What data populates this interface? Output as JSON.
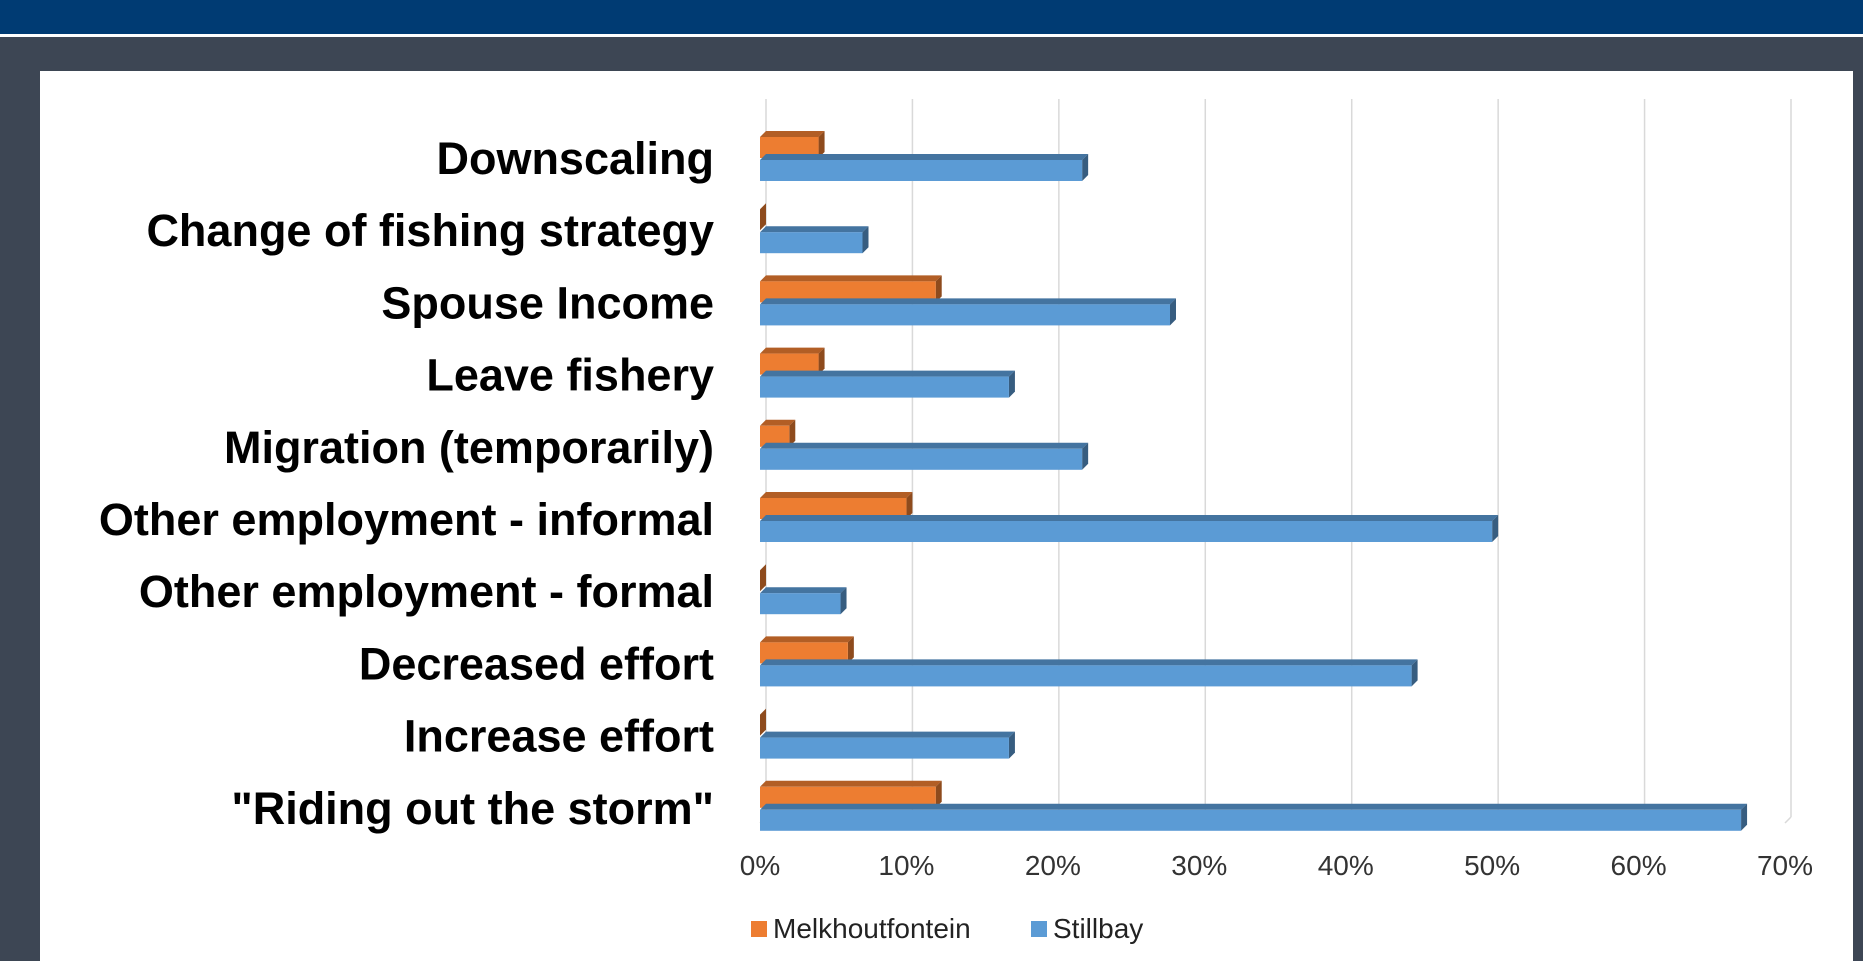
{
  "colors": {
    "header_band": "#003b73",
    "frame": "#3d4654",
    "panel": "#ffffff",
    "gridline": "#d9d9d9"
  },
  "chart_data": {
    "type": "bar",
    "orientation": "horizontal",
    "style": "3d-clustered-bar",
    "categories": [
      "Downscaling",
      "Change of fishing strategy",
      "Spouse Income",
      "Leave fishery",
      "Migration (temporarily)",
      "Other employment - informal",
      "Other employment - formal",
      "Decreased effort",
      "Increase effort",
      "\"Riding out the storm\""
    ],
    "series": [
      {
        "name": "Melkhoutfontein",
        "color": "#ed7d31",
        "values": [
          0.04,
          0.0,
          0.12,
          0.04,
          0.02,
          0.1,
          0.0,
          0.06,
          0.0,
          0.12
        ]
      },
      {
        "name": "Stillbay",
        "color": "#5b9bd5",
        "values": [
          0.22,
          0.07,
          0.28,
          0.17,
          0.22,
          0.5,
          0.055,
          0.445,
          0.17,
          0.67
        ]
      }
    ],
    "xlim": [
      0,
      0.7
    ],
    "x_ticks": [
      "0%",
      "10%",
      "20%",
      "30%",
      "40%",
      "50%",
      "60%",
      "70%"
    ],
    "grid": true,
    "legend_position": "bottom",
    "title": "",
    "xlabel": "",
    "ylabel": ""
  }
}
